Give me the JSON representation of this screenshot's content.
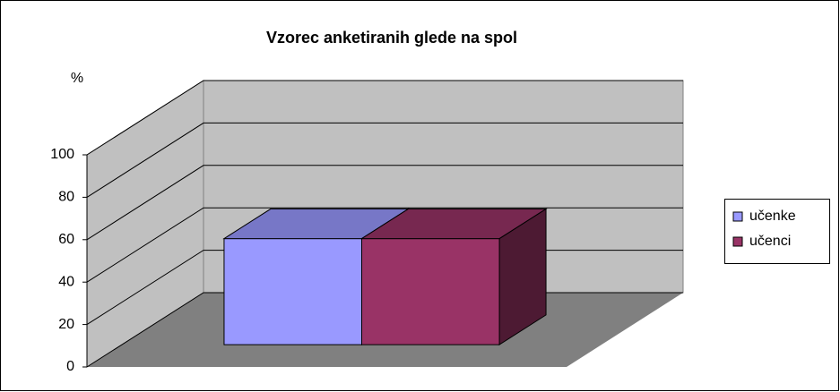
{
  "chart_data": {
    "type": "bar3d",
    "title": "Vzorec anketiranih glede na spol",
    "y_label": "%",
    "categories": [
      null
    ],
    "series": [
      {
        "name": "učenke",
        "color": "#9999ff",
        "values": [
          50
        ]
      },
      {
        "name": "učenci",
        "color": "#993366",
        "values": [
          50
        ]
      }
    ],
    "ylim": [
      0,
      100
    ],
    "yticks": [
      0,
      20,
      40,
      60,
      80,
      100
    ],
    "grid": true,
    "legend": "right"
  }
}
